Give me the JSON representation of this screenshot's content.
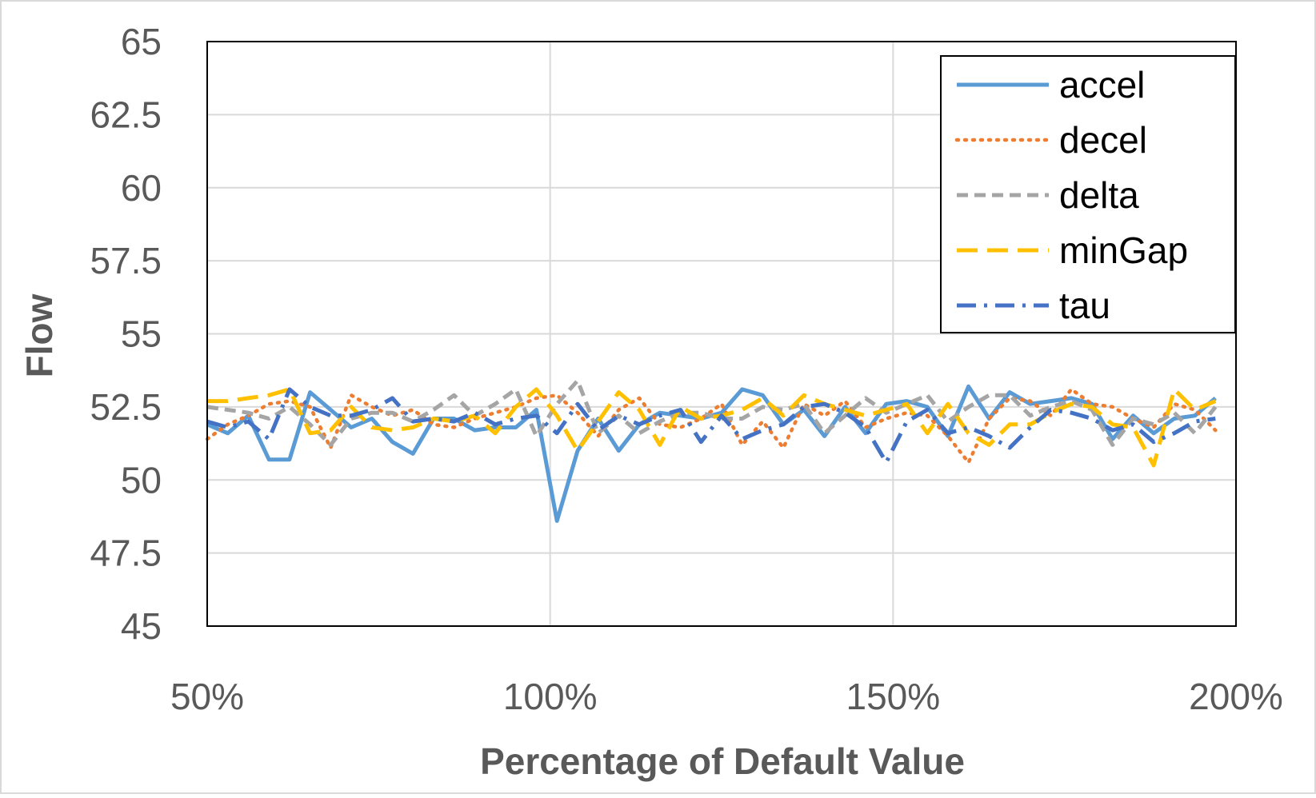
{
  "chart_data": {
    "type": "line",
    "title": "",
    "xlabel": "Percentage of Default Value",
    "ylabel": "Flow",
    "xlim": [
      50,
      200
    ],
    "ylim": [
      45,
      65
    ],
    "x_ticks": [
      50,
      100,
      150,
      200
    ],
    "x_tick_labels": [
      "50%",
      "100%",
      "150%",
      "200%"
    ],
    "y_ticks": [
      45,
      47.5,
      50,
      52.5,
      55,
      57.5,
      60,
      62.5,
      65
    ],
    "y_tick_labels": [
      "45",
      "47.5",
      "50",
      "52.5",
      "55",
      "57.5",
      "60",
      "62.5",
      "65"
    ],
    "grid": true,
    "legend_position": "top-right",
    "x": [
      50,
      53,
      56,
      59,
      62,
      65,
      68,
      71,
      74,
      77,
      80,
      83,
      86,
      89,
      92,
      95,
      98,
      101,
      104,
      107,
      110,
      113,
      116,
      119,
      122,
      125,
      128,
      131,
      134,
      137,
      140,
      143,
      146,
      149,
      152,
      155,
      158,
      161,
      164,
      167,
      170,
      173,
      176,
      179,
      182,
      185,
      188,
      191,
      194,
      197
    ],
    "series": [
      {
        "name": "accel",
        "color": "#5B9BD5",
        "dash": "solid",
        "values": [
          51.9,
          51.6,
          52.2,
          50.7,
          50.7,
          53.0,
          52.4,
          51.8,
          52.1,
          51.3,
          50.9,
          52.1,
          52.1,
          51.7,
          51.8,
          51.8,
          52.4,
          48.6,
          51.0,
          52.1,
          51.0,
          51.9,
          52.3,
          52.2,
          52.1,
          52.3,
          53.1,
          52.9,
          51.9,
          52.4,
          51.5,
          52.5,
          51.6,
          52.6,
          52.7,
          52.5,
          51.5,
          53.2,
          52.1,
          53.0,
          52.6,
          52.7,
          52.8,
          52.6,
          51.4,
          52.2,
          51.6,
          52.1,
          52.2,
          52.8
        ]
      },
      {
        "name": "decel",
        "color": "#ED7D31",
        "dash": "dotted",
        "values": [
          51.4,
          51.9,
          52.2,
          52.6,
          52.7,
          52.5,
          51.1,
          52.9,
          52.5,
          52.2,
          52.4,
          51.9,
          51.8,
          52.1,
          52.3,
          52.5,
          52.8,
          52.9,
          52.3,
          51.5,
          52.4,
          52.8,
          51.9,
          51.8,
          52.1,
          52.6,
          51.2,
          52.0,
          51.1,
          52.6,
          52.2,
          52.7,
          51.8,
          52.1,
          52.3,
          52.2,
          51.5,
          50.6,
          52.1,
          52.8,
          52.7,
          52.2,
          53.1,
          52.6,
          52.5,
          52.1,
          51.8,
          52.6,
          52.4,
          51.7
        ]
      },
      {
        "name": "delta",
        "color": "#A5A5A5",
        "dash": "dashed",
        "values": [
          52.5,
          52.4,
          52.3,
          52.1,
          52.5,
          51.9,
          51.2,
          52.1,
          52.3,
          52.3,
          52.0,
          52.4,
          52.9,
          52.2,
          52.6,
          53.1,
          51.5,
          52.6,
          53.4,
          51.6,
          52.2,
          51.6,
          52.0,
          52.3,
          52.3,
          52.1,
          52.1,
          52.5,
          52.4,
          52.6,
          51.6,
          52.2,
          52.8,
          52.3,
          52.6,
          52.9,
          52.0,
          52.5,
          52.9,
          52.9,
          52.2,
          52.5,
          52.7,
          52.4,
          51.2,
          52.1,
          51.9,
          52.3,
          51.6,
          52.5
        ]
      },
      {
        "name": "minGap",
        "color": "#FFC000",
        "dash": "longdash",
        "values": [
          52.7,
          52.7,
          52.8,
          52.9,
          53.1,
          51.6,
          51.7,
          52.5,
          51.8,
          51.7,
          51.8,
          52.1,
          52.0,
          52.2,
          51.6,
          52.5,
          53.1,
          52.2,
          51.0,
          52.0,
          53.0,
          52.4,
          51.2,
          52.5,
          52.1,
          52.2,
          52.4,
          52.8,
          52.2,
          52.9,
          52.6,
          52.4,
          52.2,
          52.4,
          52.6,
          51.6,
          52.6,
          51.6,
          51.2,
          51.9,
          51.9,
          52.3,
          52.6,
          52.5,
          51.9,
          51.8,
          50.5,
          53.1,
          52.4,
          52.7
        ]
      },
      {
        "name": "tau",
        "color": "#4472C4",
        "dash": "dashdot",
        "values": [
          52.0,
          51.8,
          52.0,
          51.4,
          53.1,
          52.5,
          52.2,
          52.2,
          52.4,
          52.8,
          52.0,
          52.1,
          52.0,
          52.3,
          51.9,
          52.1,
          52.2,
          51.6,
          52.6,
          51.7,
          52.2,
          51.9,
          52.2,
          52.4,
          51.3,
          52.2,
          51.4,
          51.7,
          51.9,
          52.5,
          52.6,
          52.3,
          51.8,
          50.6,
          52.0,
          52.4,
          51.6,
          51.8,
          51.5,
          51.1,
          51.8,
          52.4,
          52.3,
          52.1,
          51.7,
          51.9,
          51.3,
          51.6,
          52.0,
          52.1
        ]
      }
    ]
  }
}
